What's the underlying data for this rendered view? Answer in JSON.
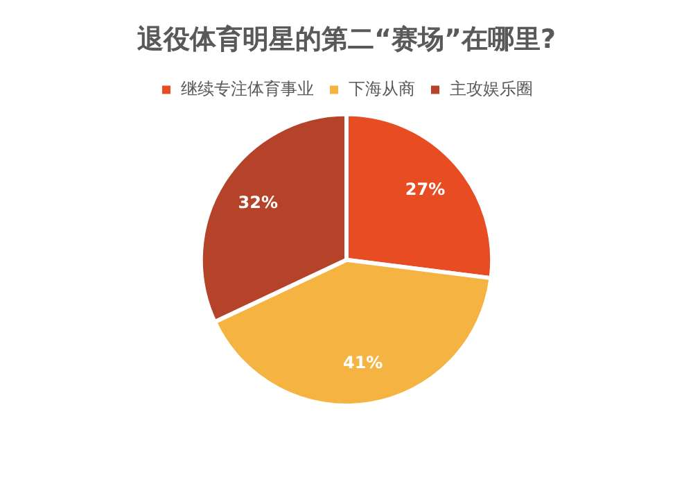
{
  "chart_data": {
    "type": "pie",
    "title": "退役体育明星的第二“赛场”在哪里?",
    "categories": [
      "继续专注体育事业",
      "下海从商",
      "主攻娱乐圈"
    ],
    "values": [
      27,
      41,
      32
    ],
    "colors": [
      "#e84c22",
      "#f5b342",
      "#b5432a"
    ],
    "value_labels": [
      "27%",
      "41%",
      "32%"
    ],
    "legend": "top"
  }
}
